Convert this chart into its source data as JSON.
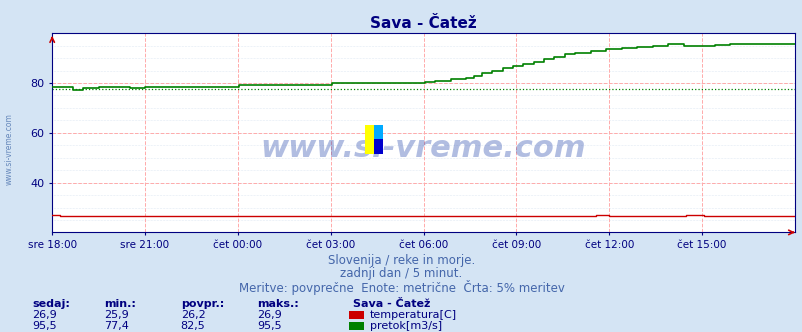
{
  "title": "Sava - Čatež",
  "title_color": "#000080",
  "title_fontsize": 11,
  "bg_color": "#d4e4f4",
  "plot_bg_color": "#ffffff",
  "x_labels": [
    "sre 18:00",
    "sre 21:00",
    "čet 00:00",
    "čet 03:00",
    "čet 06:00",
    "čet 09:00",
    "čet 12:00",
    "čet 15:00"
  ],
  "x_ticks_norm": [
    0.0,
    0.125,
    0.25,
    0.375,
    0.5,
    0.625,
    0.75,
    0.875
  ],
  "y_min": 20,
  "y_max": 100,
  "y_ticks": [
    40,
    60,
    80
  ],
  "axis_color": "#000080",
  "temp_color": "#cc0000",
  "flow_color": "#008000",
  "avg_dotted_value": 77.4,
  "watermark": "www.si-vreme.com",
  "watermark_color": "#2244aa",
  "watermark_alpha": 0.35,
  "watermark_fontsize": 22,
  "sub_line1": "Slovenija / reke in morje.",
  "sub_line2": "zadnji dan / 5 minut.",
  "sub_line3": "Meritve: povprečne  Enote: metrične  Črta: 5% meritev",
  "sub_color": "#4466aa",
  "sub_fontsize": 8.5,
  "legend_title": "Sava - Čatež",
  "legend_label_temp": "temperatura[C]",
  "legend_label_flow": "pretok[m3/s]",
  "stats_headers": [
    "sedaj:",
    "min.:",
    "povpr.:",
    "maks.:"
  ],
  "stats_temp": [
    "26,9",
    "25,9",
    "26,2",
    "26,9"
  ],
  "stats_flow": [
    "95,5",
    "77,4",
    "82,5",
    "95,5"
  ],
  "stats_color": "#000080",
  "n_points": 288,
  "left_label": "www.si-vreme.com",
  "left_label_color": "#6688bb"
}
